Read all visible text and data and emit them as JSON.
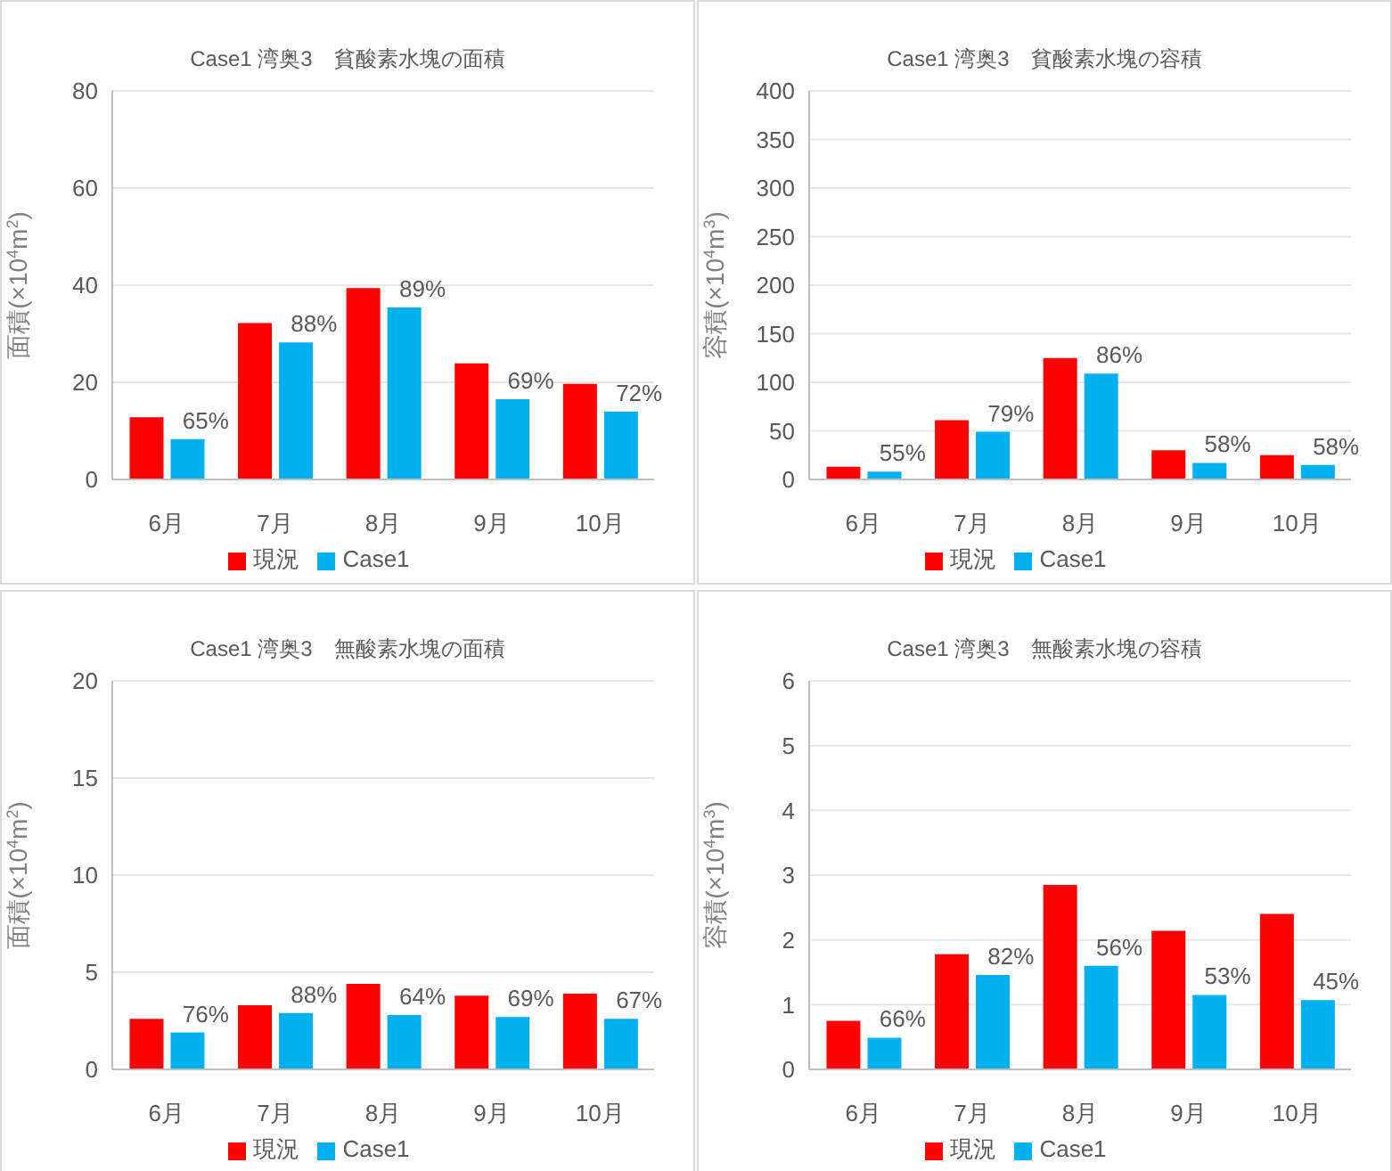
{
  "chart_data": [
    {
      "type": "bar",
      "title": "Case1 湾奥3　貧酸素水塊の面積",
      "ylabel": "面積(×10$^{4}$m$^{2}$)",
      "categories": [
        "6月",
        "7月",
        "8月",
        "9月",
        "10月"
      ],
      "series": [
        {
          "name": "現況",
          "color": "#ff0000",
          "values": [
            12.8,
            32.2,
            39.4,
            23.9,
            19.7
          ]
        },
        {
          "name": "Case1",
          "color": "#00b0f0",
          "values": [
            8.3,
            28.2,
            35.4,
            16.5,
            14.0
          ]
        }
      ],
      "annotations": [
        {
          "text": "65%",
          "x": "6月",
          "y": 8.3
        },
        {
          "text": "88%",
          "x": "7月",
          "y": 28.2
        },
        {
          "text": "89%",
          "x": "8月",
          "y": 35.4
        },
        {
          "text": "69%",
          "x": "9月",
          "y": 16.5
        },
        {
          "text": "72%",
          "x": "10月",
          "y": 14.0
        }
      ],
      "ylim": [
        0,
        80
      ],
      "yticks": [
        0,
        20,
        40,
        60,
        80
      ],
      "grid": "y",
      "legend": "bottom"
    },
    {
      "type": "bar",
      "title": "Case1 湾奥3　貧酸素水塊の容積",
      "ylabel": "容積(×10$^{4}$m$^{3}$)",
      "categories": [
        "6月",
        "7月",
        "8月",
        "9月",
        "10月"
      ],
      "series": [
        {
          "name": "現況",
          "color": "#ff0000",
          "values": [
            13,
            61,
            125,
            30,
            25
          ]
        },
        {
          "name": "Case1",
          "color": "#00b0f0",
          "values": [
            8,
            49,
            109,
            17,
            15
          ]
        }
      ],
      "annotations": [
        {
          "text": "55%",
          "x": "6月",
          "y": 8
        },
        {
          "text": "79%",
          "x": "7月",
          "y": 49
        },
        {
          "text": "86%",
          "x": "8月",
          "y": 109
        },
        {
          "text": "58%",
          "x": "9月",
          "y": 17
        },
        {
          "text": "58%",
          "x": "10月",
          "y": 15
        }
      ],
      "ylim": [
        0,
        400
      ],
      "yticks": [
        0,
        50,
        100,
        150,
        200,
        250,
        300,
        350,
        400
      ],
      "grid": "y",
      "legend": "bottom"
    },
    {
      "type": "bar",
      "title": "Case1 湾奥3　無酸素水塊の面積",
      "ylabel": "面積(×10$^{4}$m$^{2}$)",
      "categories": [
        "6月",
        "7月",
        "8月",
        "9月",
        "10月"
      ],
      "series": [
        {
          "name": "現況",
          "color": "#ff0000",
          "values": [
            2.6,
            3.3,
            4.4,
            3.8,
            3.9
          ]
        },
        {
          "name": "Case1",
          "color": "#00b0f0",
          "values": [
            1.9,
            2.9,
            2.8,
            2.7,
            2.6
          ]
        }
      ],
      "annotations": [
        {
          "text": "76%",
          "x": "6月",
          "y": 1.9
        },
        {
          "text": "88%",
          "x": "7月",
          "y": 2.9
        },
        {
          "text": "64%",
          "x": "8月",
          "y": 2.8
        },
        {
          "text": "69%",
          "x": "9月",
          "y": 2.7
        },
        {
          "text": "67%",
          "x": "10月",
          "y": 2.6
        }
      ],
      "ylim": [
        0,
        20
      ],
      "yticks": [
        0,
        5,
        10,
        15,
        20
      ],
      "grid": "y",
      "legend": "bottom"
    },
    {
      "type": "bar",
      "title": "Case1 湾奥3　無酸素水塊の容積",
      "ylabel": "容積(×10$^{4}$m$^{3}$)",
      "categories": [
        "6月",
        "7月",
        "8月",
        "9月",
        "10月"
      ],
      "series": [
        {
          "name": "現況",
          "color": "#ff0000",
          "values": [
            0.75,
            1.78,
            2.85,
            2.14,
            2.4
          ]
        },
        {
          "name": "Case1",
          "color": "#00b0f0",
          "values": [
            0.49,
            1.46,
            1.6,
            1.15,
            1.07
          ]
        }
      ],
      "annotations": [
        {
          "text": "66%",
          "x": "6月",
          "y": 0.49
        },
        {
          "text": "82%",
          "x": "7月",
          "y": 1.46
        },
        {
          "text": "56%",
          "x": "8月",
          "y": 1.6
        },
        {
          "text": "53%",
          "x": "9月",
          "y": 1.15
        },
        {
          "text": "45%",
          "x": "10月",
          "y": 1.07
        }
      ],
      "ylim": [
        0,
        6
      ],
      "yticks": [
        0,
        1,
        2,
        3,
        4,
        5,
        6
      ],
      "grid": "y",
      "legend": "bottom"
    }
  ]
}
